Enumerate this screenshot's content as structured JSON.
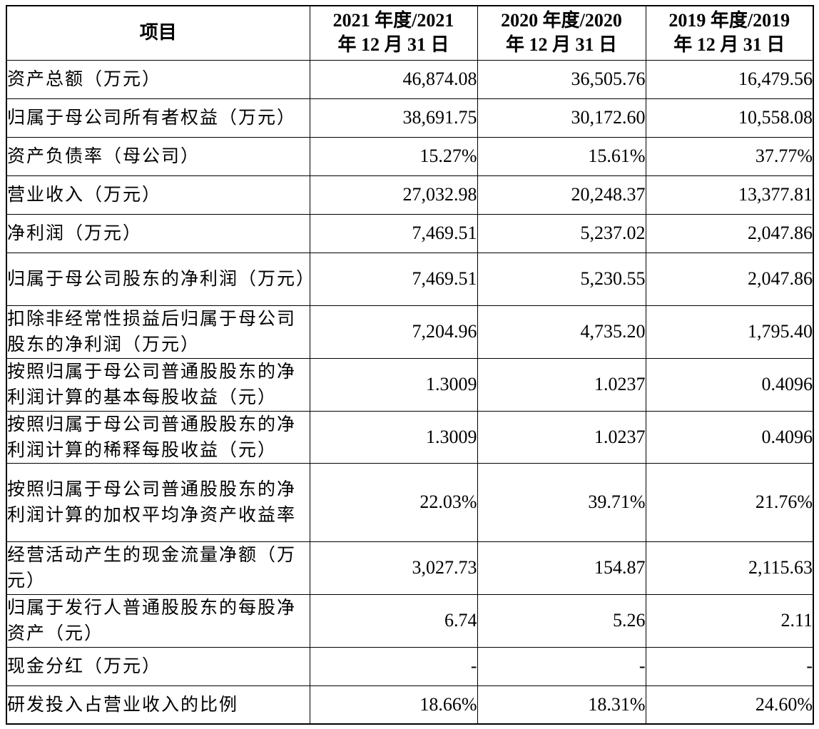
{
  "table": {
    "headers": [
      {
        "line1": "项目",
        "line2": ""
      },
      {
        "line1": "2021 年度/2021",
        "line2": "年 12 月 31 日"
      },
      {
        "line1": "2020 年度/2020",
        "line2": "年 12 月 31 日"
      },
      {
        "line1": "2019 年度/2019",
        "line2": "年 12 月 31 日"
      }
    ],
    "rows": [
      {
        "label": "资产总额（万元）",
        "v2021": "46,874.08",
        "v2020": "36,505.76",
        "v2019": "16,479.56"
      },
      {
        "label": "归属于母公司所有者权益（万元）",
        "v2021": "38,691.75",
        "v2020": "30,172.60",
        "v2019": "10,558.08"
      },
      {
        "label": "资产负债率（母公司）",
        "v2021": "15.27%",
        "v2020": "15.61%",
        "v2019": "37.77%"
      },
      {
        "label": "营业收入（万元）",
        "v2021": "27,032.98",
        "v2020": "20,248.37",
        "v2019": "13,377.81"
      },
      {
        "label": "净利润（万元）",
        "v2021": "7,469.51",
        "v2020": "5,237.02",
        "v2019": "2,047.86"
      },
      {
        "label": "归属于母公司股东的净利润（万元）",
        "v2021": "7,469.51",
        "v2020": "5,230.55",
        "v2019": "2,047.86"
      },
      {
        "label": "扣除非经常性损益后归属于母公司股东的净利润（万元）",
        "v2021": "7,204.96",
        "v2020": "4,735.20",
        "v2019": "1,795.40"
      },
      {
        "label": "按照归属于母公司普通股股东的净利润计算的基本每股收益（元）",
        "v2021": "1.3009",
        "v2020": "1.0237",
        "v2019": "0.4096"
      },
      {
        "label": "按照归属于母公司普通股股东的净利润计算的稀释每股收益（元）",
        "v2021": "1.3009",
        "v2020": "1.0237",
        "v2019": "0.4096"
      },
      {
        "label": "按照归属于母公司普通股股东的净利润计算的加权平均净资产收益率",
        "v2021": "22.03%",
        "v2020": "39.71%",
        "v2019": "21.76%"
      },
      {
        "label": "经营活动产生的现金流量净额（万元）",
        "v2021": "3,027.73",
        "v2020": "154.87",
        "v2019": "2,115.63"
      },
      {
        "label": "归属于发行人普通股股东的每股净资产（元）",
        "v2021": "6.74",
        "v2020": "5.26",
        "v2019": "2.11"
      },
      {
        "label": "现金分红（万元）",
        "v2021": "-",
        "v2020": "-",
        "v2019": "-"
      },
      {
        "label": "研发投入占营业收入的比例",
        "v2021": "18.66%",
        "v2020": "18.31%",
        "v2019": "24.60%"
      }
    ]
  }
}
